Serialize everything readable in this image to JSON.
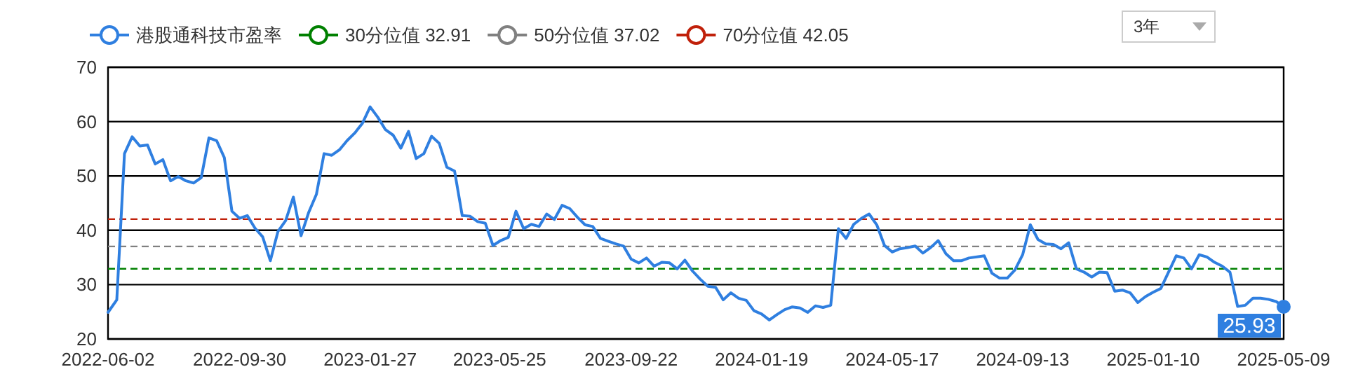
{
  "chart_data": {
    "type": "line",
    "x": [
      "2022-06-02",
      "2022-06-10",
      "2022-06-17",
      "2022-06-24",
      "2022-07-01",
      "2022-07-08",
      "2022-07-15",
      "2022-07-22",
      "2022-07-29",
      "2022-08-05",
      "2022-08-12",
      "2022-08-19",
      "2022-08-26",
      "2022-09-02",
      "2022-09-09",
      "2022-09-16",
      "2022-09-23",
      "2022-09-30",
      "2022-10-07",
      "2022-10-14",
      "2022-10-21",
      "2022-10-28",
      "2022-11-04",
      "2022-11-11",
      "2022-11-18",
      "2022-11-25",
      "2022-12-02",
      "2022-12-09",
      "2022-12-16",
      "2022-12-23",
      "2022-12-30",
      "2023-01-06",
      "2023-01-13",
      "2023-01-20",
      "2023-01-27",
      "2023-02-03",
      "2023-02-10",
      "2023-02-17",
      "2023-02-24",
      "2023-03-03",
      "2023-03-10",
      "2023-03-17",
      "2023-03-24",
      "2023-03-31",
      "2023-04-07",
      "2023-04-14",
      "2023-04-21",
      "2023-04-28",
      "2023-05-05",
      "2023-05-12",
      "2023-05-19",
      "2023-05-26",
      "2023-06-02",
      "2023-06-09",
      "2023-06-16",
      "2023-06-23",
      "2023-06-30",
      "2023-07-07",
      "2023-07-14",
      "2023-07-21",
      "2023-07-28",
      "2023-08-04",
      "2023-08-11",
      "2023-08-18",
      "2023-08-25",
      "2023-09-01",
      "2023-09-08",
      "2023-09-15",
      "2023-09-22",
      "2023-09-29",
      "2023-10-06",
      "2023-10-13",
      "2023-10-20",
      "2023-10-27",
      "2023-11-03",
      "2023-11-10",
      "2023-11-17",
      "2023-11-24",
      "2023-12-01",
      "2023-12-08",
      "2023-12-15",
      "2023-12-22",
      "2023-12-29",
      "2024-01-05",
      "2024-01-12",
      "2024-01-19",
      "2024-01-26",
      "2024-02-02",
      "2024-02-09",
      "2024-02-16",
      "2024-02-23",
      "2024-03-01",
      "2024-03-08",
      "2024-03-15",
      "2024-03-22",
      "2024-03-29",
      "2024-04-05",
      "2024-04-12",
      "2024-04-19",
      "2024-04-26",
      "2024-05-03",
      "2024-05-10",
      "2024-05-17",
      "2024-05-24",
      "2024-05-31",
      "2024-06-07",
      "2024-06-14",
      "2024-06-21",
      "2024-06-28",
      "2024-07-05",
      "2024-07-12",
      "2024-07-19",
      "2024-07-26",
      "2024-08-09",
      "2024-08-16",
      "2024-08-23",
      "2024-08-30",
      "2024-09-06",
      "2024-09-13",
      "2024-09-20",
      "2024-09-27",
      "2024-10-04",
      "2024-10-11",
      "2024-10-18",
      "2024-10-25",
      "2024-11-01",
      "2024-11-08",
      "2024-11-15",
      "2024-11-22",
      "2024-11-29",
      "2024-12-06",
      "2024-12-13",
      "2024-12-20",
      "2024-12-27",
      "2025-01-03",
      "2025-01-10",
      "2025-01-17",
      "2025-01-24",
      "2025-01-31",
      "2025-02-07",
      "2025-02-14",
      "2025-02-21",
      "2025-02-28",
      "2025-03-07",
      "2025-03-14",
      "2025-03-21",
      "2025-03-28",
      "2025-04-04",
      "2025-04-11",
      "2025-04-18",
      "2025-04-25",
      "2025-05-02",
      "2025-05-09"
    ],
    "series": [
      {
        "name": "港股通科技市盈率",
        "color": "#2f7fe0",
        "values": [
          24.9,
          27.2,
          54.1,
          57.2,
          55.5,
          55.7,
          52.2,
          53.0,
          49.1,
          49.9,
          49.1,
          48.7,
          49.7,
          57.0,
          56.5,
          53.4,
          43.5,
          42.2,
          42.7,
          40.4,
          38.8,
          34.4,
          39.8,
          41.8,
          46.1,
          39.0,
          43.3,
          46.6,
          54.1,
          53.8,
          54.8,
          56.5,
          57.9,
          59.7,
          62.7,
          60.8,
          58.5,
          57.5,
          55.1,
          58.2,
          53.2,
          54.1,
          57.3,
          56.0,
          51.6,
          50.9,
          42.7,
          42.6,
          41.6,
          41.3,
          37.2,
          38.1,
          38.7,
          43.5,
          40.3,
          41.1,
          40.7,
          43.0,
          42.0,
          44.6,
          44.0,
          42.4,
          41.0,
          40.7,
          38.5,
          38.0,
          37.5,
          37.1,
          34.7,
          34.0,
          34.9,
          33.4,
          34.1,
          34.0,
          32.9,
          34.5,
          32.5,
          31.0,
          29.7,
          29.5,
          27.2,
          28.5,
          27.5,
          27.1,
          25.2,
          24.6,
          23.5,
          24.5,
          25.4,
          25.9,
          25.7,
          24.9,
          26.1,
          25.8,
          26.2,
          40.3,
          38.5,
          41.1,
          42.2,
          43.0,
          41.0,
          37.2,
          36.0,
          36.6,
          36.8,
          37.1,
          35.8,
          36.8,
          38.1,
          35.7,
          34.4,
          34.4,
          34.9,
          35.3,
          32.1,
          31.2,
          31.2,
          32.7,
          35.5,
          41.0,
          38.3,
          37.5,
          37.4,
          36.6,
          37.7,
          32.9,
          32.3,
          31.4,
          32.3,
          32.2,
          28.8,
          29.0,
          28.5,
          26.7,
          27.8,
          28.6,
          29.3,
          32.3,
          35.3,
          34.9,
          32.9,
          35.5,
          35.1,
          34.1,
          33.4,
          32.3,
          26.0,
          26.2,
          27.5,
          27.5,
          27.3,
          26.9,
          25.93
        ],
        "value_labels": [
          null,
          null,
          null,
          null,
          null,
          null,
          null,
          null,
          null,
          null,
          null,
          null,
          null,
          null,
          null,
          null,
          null,
          null,
          null,
          null,
          null,
          null,
          null,
          null,
          null,
          null,
          null,
          null,
          null,
          null,
          null,
          null,
          null,
          null,
          null,
          null,
          null,
          null,
          null,
          null,
          null,
          null,
          null,
          null,
          null,
          null,
          null,
          null,
          null,
          null,
          null,
          null,
          null,
          null,
          null,
          null,
          null,
          null,
          null,
          null,
          null,
          null,
          null,
          null,
          null,
          null,
          null,
          null,
          null,
          null,
          null,
          null,
          null,
          null,
          null,
          null,
          null,
          null,
          null,
          null,
          null,
          null,
          null,
          null,
          null,
          null,
          null,
          null,
          null,
          null,
          null,
          null,
          null,
          null,
          null,
          null,
          null,
          null,
          null,
          null,
          null,
          null,
          null,
          null,
          null,
          null,
          null,
          null,
          null,
          null,
          null,
          null,
          null,
          null,
          null,
          null,
          null,
          null,
          null,
          null,
          null,
          null,
          null,
          null,
          null,
          null,
          null,
          null,
          null,
          null,
          null,
          null,
          null,
          null,
          null,
          null,
          null,
          null,
          null,
          null,
          null,
          null,
          null,
          null,
          null,
          null,
          null,
          null,
          null,
          null,
          null,
          null,
          "25.93"
        ]
      }
    ],
    "ref_lines": [
      {
        "axis": "y",
        "value": 32.91,
        "label": "30分位值 32.91",
        "color": "#008000",
        "line_style": "dashed"
      },
      {
        "axis": "y",
        "value": 37.02,
        "label": "50分位值 37.02",
        "color": "#808080",
        "line_style": "dashed"
      },
      {
        "axis": "y",
        "value": 42.05,
        "label": "70分位值 42.05",
        "color": "#c0200a",
        "line_style": "dashed"
      }
    ],
    "xlim": [
      "2022-06-02",
      "2025-05-09"
    ],
    "xticks": [
      "2022-06-02",
      "2022-09-30",
      "2023-01-27",
      "2023-05-25",
      "2023-09-22",
      "2024-01-19",
      "2024-05-17",
      "2024-09-13",
      "2025-01-10",
      "2025-05-09"
    ],
    "ylim": [
      20,
      70
    ],
    "yticks": [
      20,
      30,
      40,
      50,
      60,
      70
    ],
    "grid": "y",
    "legend": "top left",
    "marker": "none",
    "line_style": "solid",
    "annotations": [
      "3年"
    ]
  }
}
